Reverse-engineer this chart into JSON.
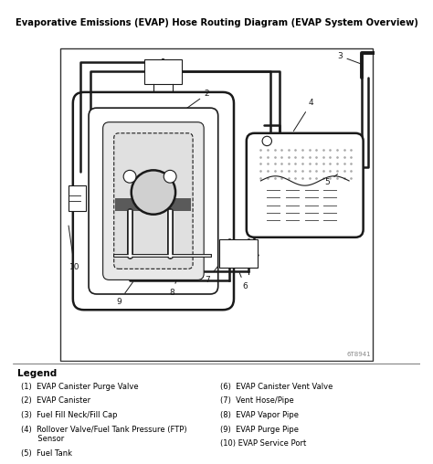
{
  "title": "Evaporative Emissions (EVAP) Hose Routing Diagram (EVAP System Overview)",
  "legend_title": "Legend",
  "legend_items_left": [
    "(1)  EVAP Canister Purge Valve",
    "(2)  EVAP Canister",
    "(3)  Fuel Fill Neck/Fill Cap",
    "(4)  Rollover Valve/Fuel Tank Pressure (FTP)\n       Sensor",
    "(5)  Fuel Tank"
  ],
  "legend_items_right": [
    "(6)  EVAP Canister Vent Valve",
    "(7)  Vent Hose/Pipe",
    "(8)  EVAP Vapor Pipe",
    "(9)  EVAP Purge Pipe",
    "(10) EVAP Service Port"
  ],
  "diagram_id": "6T8941",
  "lc": "#1a1a1a"
}
